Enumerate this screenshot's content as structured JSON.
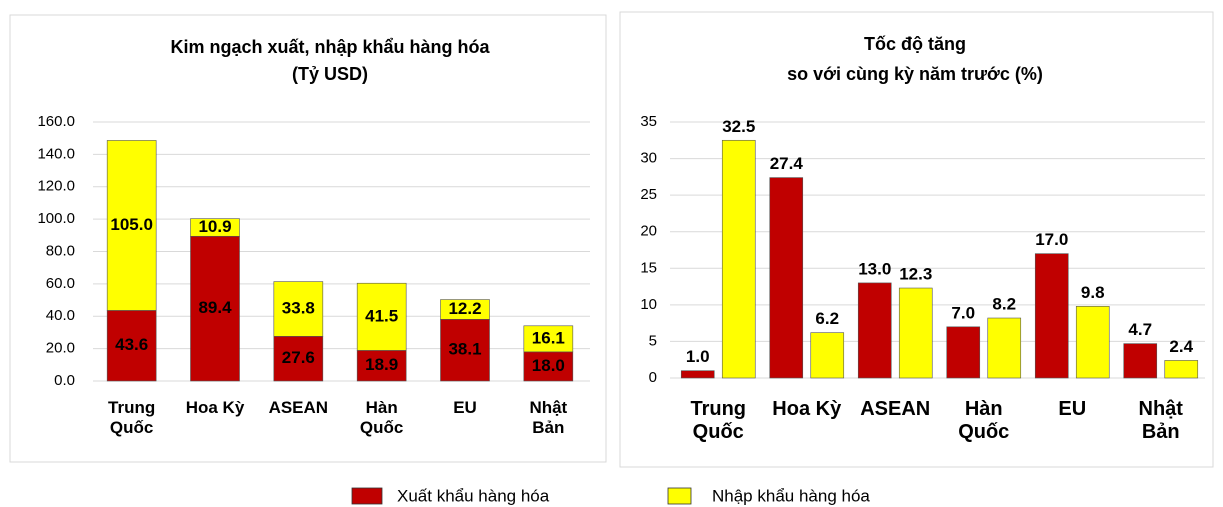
{
  "chart_data": [
    {
      "type": "bar",
      "stacked": true,
      "title": [
        "Kim ngạch xuất, nhập khẩu hàng hóa",
        "(Tỷ USD)"
      ],
      "categories": [
        "Trung\nQuốc",
        "Hoa Kỳ",
        "ASEAN",
        "Hàn\nQuốc",
        "EU",
        "Nhật\nBản"
      ],
      "series": [
        {
          "name": "Xuất khẩu hàng hóa",
          "color": "#c00000",
          "values": [
            43.6,
            89.4,
            27.6,
            18.9,
            38.1,
            18.0
          ],
          "value_labels": [
            "43.6",
            "89.4",
            "27.6",
            "18.9",
            "38.1",
            "18.0"
          ]
        },
        {
          "name": "Nhập khẩu hàng hóa",
          "color": "#ffff00",
          "values": [
            105.0,
            10.9,
            33.8,
            41.5,
            12.2,
            16.1
          ],
          "value_labels": [
            "105.0",
            "10.9",
            "33.8",
            "41.5",
            "12.2",
            "16.1"
          ]
        }
      ],
      "ylim": [
        0,
        160
      ],
      "yticks": [
        {
          "value": 0,
          "label": "0.0"
        },
        {
          "value": 20,
          "label": "20.0"
        },
        {
          "value": 40,
          "label": "40.0"
        },
        {
          "value": 60,
          "label": "60.0"
        },
        {
          "value": 80,
          "label": "80.0"
        },
        {
          "value": 100,
          "label": "100.0"
        },
        {
          "value": 120,
          "label": "120.0"
        },
        {
          "value": 140,
          "label": "140.0"
        },
        {
          "value": 160,
          "label": "160.0"
        }
      ],
      "grid": true
    },
    {
      "type": "bar",
      "stacked": false,
      "title": [
        "Tốc độ tăng",
        "so với cùng kỳ năm trước (%)"
      ],
      "categories": [
        "Trung\nQuốc",
        "Hoa Kỳ",
        "ASEAN",
        "Hàn\nQuốc",
        "EU",
        "Nhật\nBản"
      ],
      "series": [
        {
          "color": "#c00000",
          "values": [
            1.0,
            27.4,
            13.0,
            7.0,
            17.0,
            4.7
          ],
          "value_labels": [
            "1.0",
            "27.4",
            "13.0",
            "7.0",
            "17.0",
            "4.7"
          ]
        },
        {
          "color": "#ffff00",
          "values": [
            32.5,
            6.2,
            12.3,
            8.2,
            9.8,
            2.4
          ],
          "value_labels": [
            "32.5",
            "6.2",
            "12.3",
            "8.2",
            "9.8",
            "2.4"
          ]
        }
      ],
      "ylim": [
        0,
        35
      ],
      "yticks": [
        0,
        5,
        10,
        15,
        20,
        25,
        30,
        35
      ],
      "grid": true
    }
  ]
}
